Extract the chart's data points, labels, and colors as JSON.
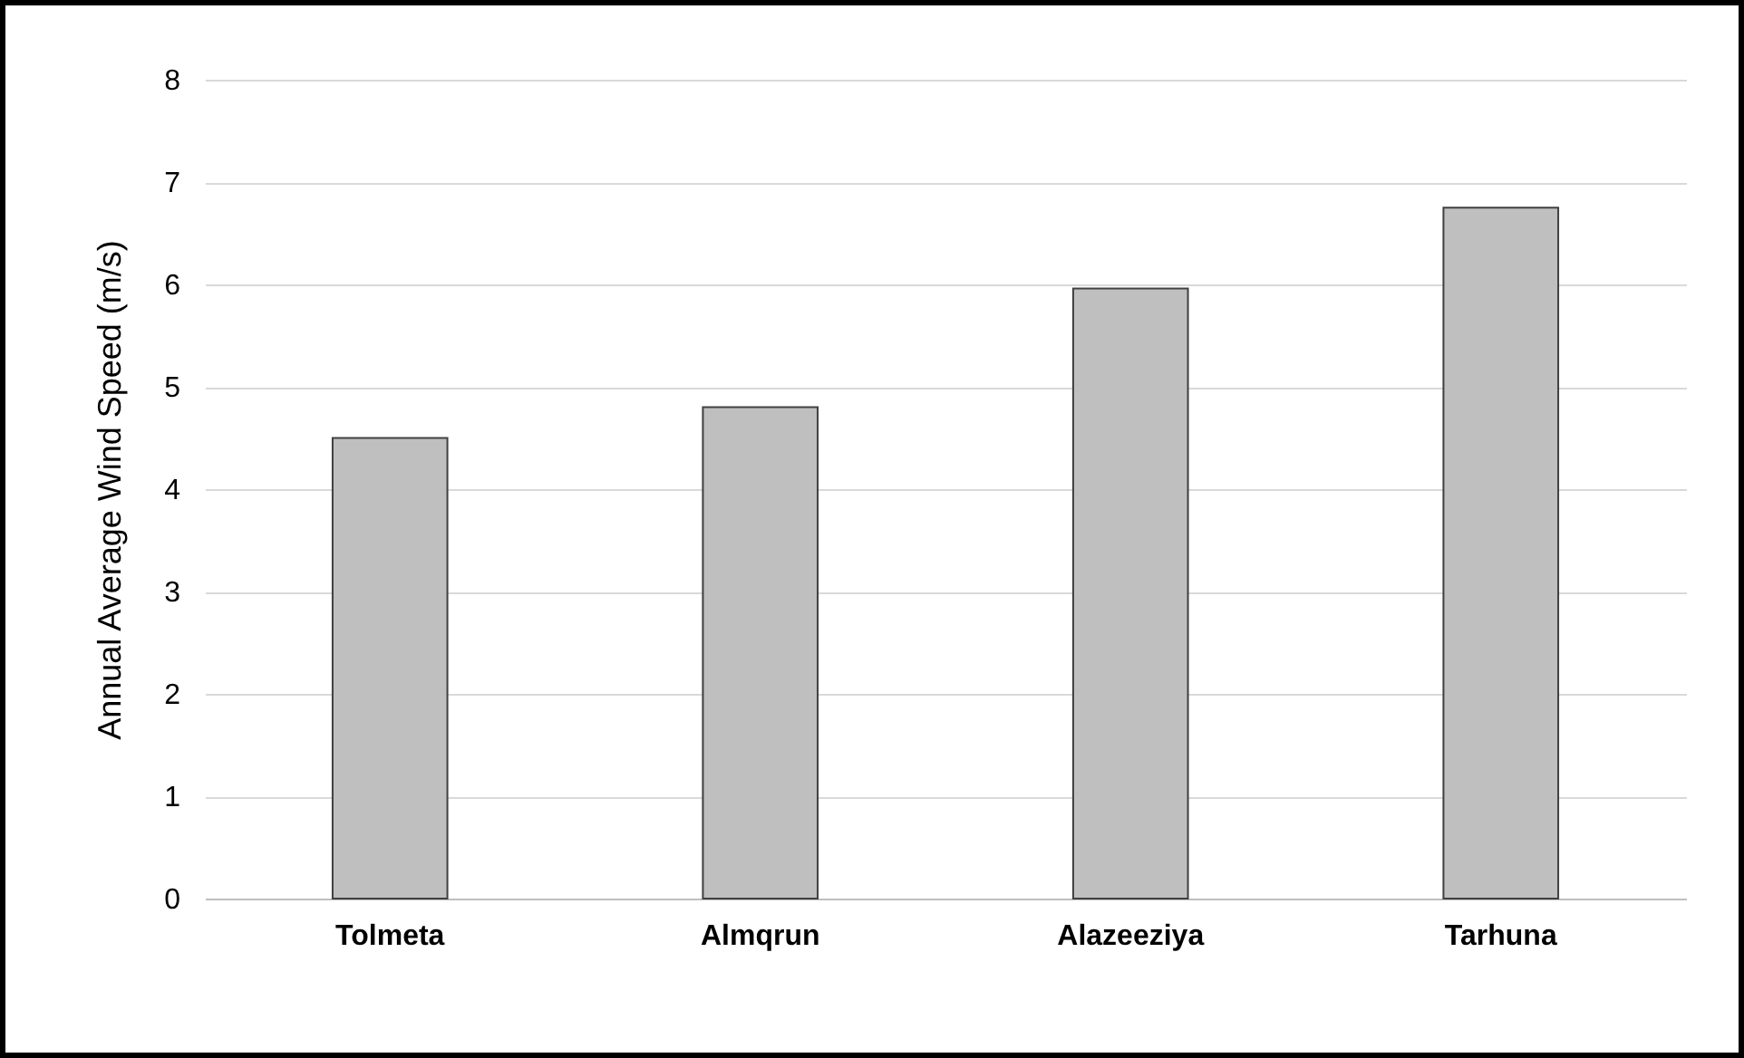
{
  "chart_data": {
    "type": "bar",
    "ylabel": "Annual Average Wind Speed (m/s)",
    "categories": [
      "Tolmeta",
      "Almqrun",
      "Alazeeziya",
      "Tarhuna"
    ],
    "values": [
      4.5,
      4.8,
      5.96,
      6.75
    ],
    "color": "#bfbfbf",
    "ylim": [
      0,
      8
    ],
    "yticks": [
      0,
      1,
      2,
      3,
      4,
      5,
      6,
      7,
      8
    ],
    "grid": "y"
  }
}
